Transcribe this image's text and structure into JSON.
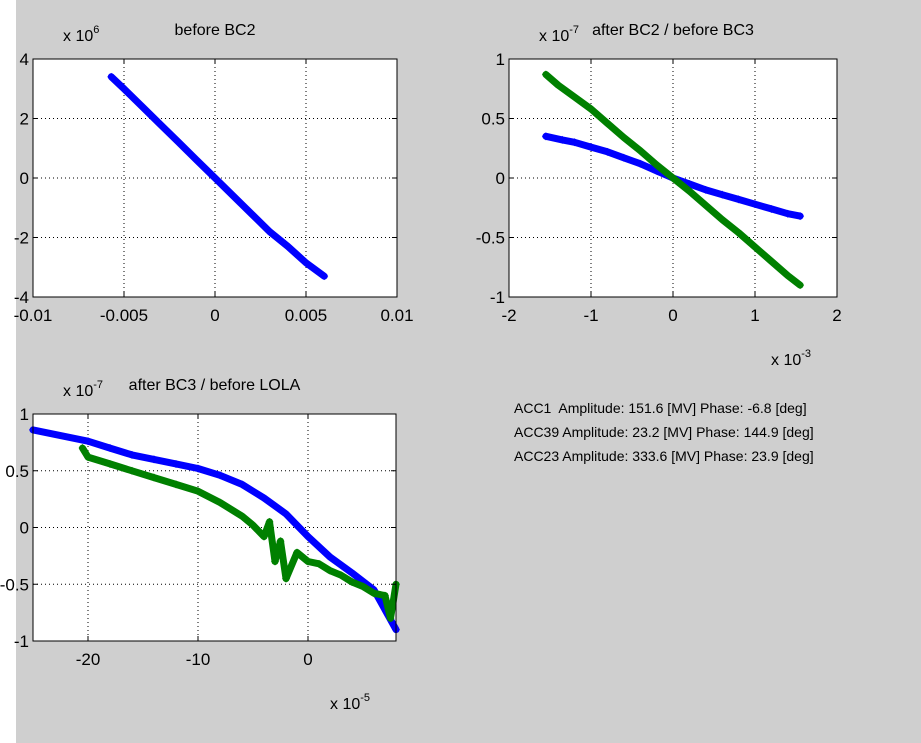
{
  "figure": {
    "background": "#cfcfcf",
    "axes_background": "#ffffff",
    "info_lines": [
      "ACC1  Amplitude: 151.6 [MV] Phase: -6.8 [deg]",
      "ACC39 Amplitude: 23.2 [MV] Phase: 144.9 [deg]",
      "ACC23 Amplitude: 333.6 [MV] Phase: 23.9 [deg]"
    ]
  },
  "chart_data": [
    {
      "type": "scatter",
      "title": "before BC2",
      "grid": true,
      "xlim": [
        -0.01,
        0.01
      ],
      "ylim": [
        -4,
        4
      ],
      "x_ticks": [
        -0.01,
        -0.005,
        0,
        0.005,
        0.01
      ],
      "x_tick_labels": [
        "-0.01",
        "-0.005",
        "0",
        "0.005",
        "0.01"
      ],
      "y_ticks": [
        -4,
        -2,
        0,
        2,
        4
      ],
      "y_tick_labels": [
        "-4",
        "-2",
        "0",
        "2",
        "4"
      ],
      "y_exponent_label": "x 10^6",
      "x_exponent_label": "",
      "series": [
        {
          "color": "#0000ff",
          "x": [
            -0.0057,
            -0.005,
            -0.004,
            -0.003,
            -0.002,
            -0.001,
            0,
            0.001,
            0.002,
            0.003,
            0.004,
            0.005,
            0.006
          ],
          "y": [
            3.4,
            3.0,
            2.4,
            1.8,
            1.2,
            0.6,
            0.0,
            -0.6,
            -1.2,
            -1.8,
            -2.3,
            -2.85,
            -3.3
          ]
        }
      ]
    },
    {
      "type": "scatter",
      "title": "after BC2   /   before BC3",
      "grid": true,
      "xlim": [
        -2,
        2
      ],
      "ylim": [
        -1,
        1
      ],
      "x_ticks": [
        -2,
        -1,
        0,
        1,
        2
      ],
      "x_tick_labels": [
        "-2",
        "-1",
        "0",
        "1",
        "2"
      ],
      "y_ticks": [
        -1,
        -0.5,
        0,
        0.5,
        1
      ],
      "y_tick_labels": [
        "-1",
        "-0.5",
        "0",
        "0.5",
        "1"
      ],
      "y_exponent_label": "x 10^-7",
      "x_exponent_label": "x 10^-3",
      "series": [
        {
          "color": "#0000ff",
          "x": [
            -1.55,
            -1.35,
            -1.2,
            -1.0,
            -0.8,
            -0.6,
            -0.4,
            -0.2,
            0,
            0.2,
            0.4,
            0.6,
            0.8,
            1.0,
            1.2,
            1.4,
            1.55
          ],
          "y": [
            0.35,
            0.32,
            0.3,
            0.26,
            0.22,
            0.17,
            0.12,
            0.06,
            0.0,
            -0.05,
            -0.1,
            -0.14,
            -0.18,
            -0.22,
            -0.26,
            -0.3,
            -0.32
          ]
        },
        {
          "color": "#008000",
          "x": [
            -1.55,
            -1.4,
            -1.2,
            -1.0,
            -0.8,
            -0.6,
            -0.4,
            -0.2,
            0,
            0.2,
            0.4,
            0.6,
            0.8,
            1.0,
            1.2,
            1.4,
            1.55
          ],
          "y": [
            0.87,
            0.78,
            0.68,
            0.58,
            0.46,
            0.34,
            0.23,
            0.11,
            0.0,
            -0.11,
            -0.23,
            -0.35,
            -0.46,
            -0.58,
            -0.7,
            -0.82,
            -0.9
          ]
        }
      ]
    },
    {
      "type": "scatter",
      "title": "after BC3   /   before LOLA",
      "grid": true,
      "xlim": [
        -25,
        8
      ],
      "ylim": [
        -1,
        1
      ],
      "x_ticks": [
        -20,
        -10,
        0
      ],
      "x_tick_labels": [
        "-20",
        "-10",
        "0"
      ],
      "y_ticks": [
        -1,
        -0.5,
        0,
        0.5,
        1
      ],
      "y_tick_labels": [
        "-1",
        "-0.5",
        "0",
        "0.5",
        "1"
      ],
      "y_exponent_label": "x 10^-7",
      "x_exponent_label": "x 10^-5",
      "series": [
        {
          "color": "#0000ff",
          "x": [
            -25,
            -20,
            -18,
            -16,
            -14,
            -12,
            -10,
            -8,
            -6,
            -4,
            -2,
            0,
            2,
            4,
            6,
            8
          ],
          "y": [
            0.86,
            0.76,
            0.7,
            0.64,
            0.6,
            0.56,
            0.52,
            0.46,
            0.38,
            0.26,
            0.12,
            -0.08,
            -0.26,
            -0.4,
            -0.55,
            -0.9
          ]
        },
        {
          "color": "#008000",
          "x": [
            -20.5,
            -20,
            -18,
            -16,
            -14,
            -12,
            -10,
            -8,
            -6,
            -5,
            -4,
            -3.5,
            -3,
            -2.5,
            -2,
            -1,
            0,
            1,
            2,
            3,
            4,
            5,
            6,
            7,
            7.5,
            8
          ],
          "y": [
            0.7,
            0.62,
            0.56,
            0.5,
            0.44,
            0.38,
            0.32,
            0.22,
            0.1,
            0.02,
            -0.08,
            0.05,
            -0.3,
            -0.12,
            -0.45,
            -0.22,
            -0.3,
            -0.32,
            -0.38,
            -0.42,
            -0.48,
            -0.52,
            -0.58,
            -0.6,
            -0.8,
            -0.5
          ]
        }
      ]
    }
  ]
}
